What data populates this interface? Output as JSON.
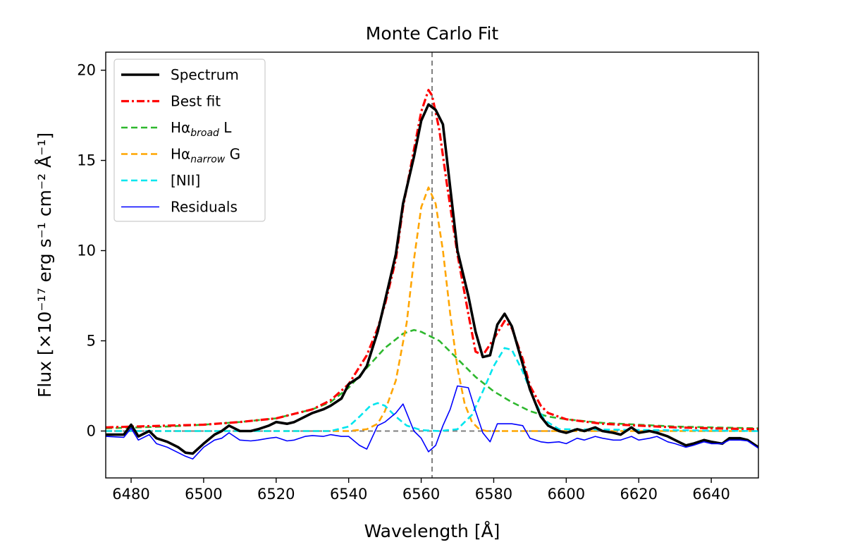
{
  "chart_data": {
    "type": "line",
    "title": "Monte Carlo Fit",
    "xlabel": "Wavelength [Å]",
    "ylabel": "Flux [×10⁻¹⁷ erg s⁻¹ cm⁻² Å⁻¹]",
    "xlim": [
      6473,
      6653
    ],
    "ylim": [
      -2.6,
      21.0
    ],
    "xticks": [
      6480,
      6500,
      6520,
      6540,
      6560,
      6580,
      6600,
      6620,
      6640
    ],
    "yticks": [
      0,
      5,
      10,
      15,
      20
    ],
    "grid": false,
    "legend_position": "top-left",
    "reference_lines": {
      "vertical_x": 6563,
      "horizontal_y": 0
    },
    "series": [
      {
        "name": "Spectrum",
        "legend_label": "Spectrum",
        "color": "#000000",
        "style": "solid",
        "x": [
          6473,
          6478,
          6480,
          6482,
          6485,
          6487,
          6490,
          6493,
          6495,
          6497,
          6500,
          6503,
          6505,
          6507,
          6510,
          6513,
          6515,
          6518,
          6520,
          6523,
          6525,
          6528,
          6530,
          6533,
          6535,
          6538,
          6540,
          6543,
          6545,
          6548,
          6550,
          6553,
          6555,
          6558,
          6560,
          6562,
          6564,
          6566,
          6568,
          6570,
          6573,
          6575,
          6577,
          6579,
          6581,
          6583,
          6585,
          6588,
          6590,
          6593,
          6595,
          6598,
          6600,
          6603,
          6605,
          6608,
          6610,
          6613,
          6615,
          6618,
          6620,
          6623,
          6625,
          6628,
          6630,
          6633,
          6635,
          6638,
          6640,
          6643,
          6645,
          6648,
          6650,
          6653
        ],
        "y": [
          -0.2,
          -0.2,
          0.35,
          -0.3,
          0.0,
          -0.4,
          -0.6,
          -0.9,
          -1.2,
          -1.25,
          -0.7,
          -0.2,
          0.0,
          0.3,
          0.0,
          0.0,
          0.1,
          0.3,
          0.5,
          0.4,
          0.5,
          0.8,
          1.0,
          1.2,
          1.4,
          1.8,
          2.6,
          3.0,
          3.6,
          5.5,
          7.2,
          9.8,
          12.6,
          15.2,
          17.2,
          18.1,
          17.8,
          17.0,
          13.5,
          10.0,
          7.5,
          5.5,
          4.1,
          4.2,
          5.9,
          6.5,
          5.8,
          3.7,
          2.3,
          0.8,
          0.3,
          0.0,
          -0.1,
          0.1,
          0.0,
          0.2,
          0.0,
          -0.1,
          -0.2,
          0.2,
          -0.1,
          0.0,
          -0.1,
          -0.3,
          -0.5,
          -0.8,
          -0.7,
          -0.5,
          -0.6,
          -0.7,
          -0.4,
          -0.4,
          -0.5,
          -0.9
        ]
      },
      {
        "name": "Best fit",
        "legend_label": "Best fit",
        "color": "#ff0000",
        "style": "dashdot",
        "x": [
          6473,
          6490,
          6500,
          6510,
          6520,
          6530,
          6535,
          6540,
          6545,
          6548,
          6550,
          6553,
          6555,
          6558,
          6560,
          6562,
          6563,
          6565,
          6567,
          6570,
          6573,
          6575,
          6577,
          6580,
          6583,
          6585,
          6588,
          6590,
          6593,
          6595,
          6600,
          6610,
          6620,
          6630,
          6640,
          6653
        ],
        "y": [
          0.2,
          0.3,
          0.35,
          0.5,
          0.7,
          1.2,
          1.7,
          2.6,
          4.2,
          5.7,
          7.0,
          9.5,
          12.4,
          15.6,
          17.7,
          18.9,
          18.6,
          16.7,
          13.8,
          9.8,
          6.5,
          4.4,
          4.2,
          5.1,
          6.1,
          5.7,
          4.0,
          2.5,
          1.4,
          1.0,
          0.65,
          0.4,
          0.3,
          0.2,
          0.15,
          0.1
        ]
      },
      {
        "name": "Hα broad L",
        "legend_label": "Hα",
        "legend_sub": "broad",
        "legend_suffix": " L",
        "color": "#2eb82e",
        "style": "dashed",
        "x": [
          6473,
          6490,
          6500,
          6510,
          6520,
          6530,
          6535,
          6540,
          6545,
          6550,
          6555,
          6558,
          6560,
          6565,
          6570,
          6575,
          6580,
          6585,
          6590,
          6595,
          6600,
          6610,
          6620,
          6630,
          6640,
          6653
        ],
        "y": [
          0.15,
          0.25,
          0.35,
          0.5,
          0.7,
          1.2,
          1.6,
          2.4,
          3.5,
          4.6,
          5.4,
          5.6,
          5.5,
          5.0,
          4.0,
          3.0,
          2.2,
          1.6,
          1.1,
          0.8,
          0.65,
          0.45,
          0.35,
          0.25,
          0.2,
          0.15
        ]
      },
      {
        "name": "Hα narrow G",
        "legend_label": "Hα",
        "legend_sub": "narrow",
        "legend_suffix": " G",
        "color": "#ffa500",
        "style": "dashed",
        "x": [
          6473,
          6540,
          6545,
          6548,
          6550,
          6553,
          6556,
          6558,
          6560,
          6562,
          6564,
          6566,
          6568,
          6570,
          6572,
          6574,
          6576,
          6578,
          6653
        ],
        "y": [
          0.0,
          0.0,
          0.1,
          0.4,
          1.1,
          2.8,
          6.0,
          9.5,
          12.4,
          13.5,
          12.6,
          10.0,
          6.5,
          3.5,
          1.5,
          0.5,
          0.1,
          0.0,
          0.0
        ]
      },
      {
        "name": "[NII]",
        "legend_label": "[NII]",
        "color": "#00e5ee",
        "style": "dashed",
        "x": [
          6473,
          6535,
          6540,
          6543,
          6546,
          6548,
          6550,
          6553,
          6556,
          6560,
          6565,
          6570,
          6574,
          6577,
          6580,
          6583,
          6585,
          6588,
          6591,
          6594,
          6598,
          6653
        ],
        "y": [
          0.0,
          0.0,
          0.25,
          0.8,
          1.4,
          1.55,
          1.4,
          0.8,
          0.3,
          0.05,
          0.0,
          0.1,
          0.9,
          2.2,
          3.6,
          4.6,
          4.5,
          3.3,
          1.8,
          0.6,
          0.1,
          0.0
        ]
      },
      {
        "name": "Residuals",
        "legend_label": "Residuals",
        "color": "#0000ff",
        "style": "solid",
        "x": [
          6473,
          6478,
          6480,
          6482,
          6485,
          6487,
          6490,
          6493,
          6495,
          6497,
          6500,
          6503,
          6505,
          6507,
          6510,
          6513,
          6515,
          6518,
          6520,
          6523,
          6525,
          6528,
          6530,
          6533,
          6535,
          6538,
          6540,
          6543,
          6545,
          6548,
          6550,
          6553,
          6555,
          6558,
          6560,
          6562,
          6564,
          6566,
          6568,
          6570,
          6573,
          6575,
          6577,
          6579,
          6581,
          6583,
          6585,
          6588,
          6590,
          6593,
          6595,
          6598,
          6600,
          6603,
          6605,
          6608,
          6610,
          6613,
          6615,
          6618,
          6620,
          6623,
          6625,
          6628,
          6630,
          6633,
          6635,
          6638,
          6640,
          6643,
          6645,
          6648,
          6650,
          6653
        ],
        "y": [
          -0.3,
          -0.35,
          0.15,
          -0.5,
          -0.2,
          -0.7,
          -0.9,
          -1.2,
          -1.4,
          -1.55,
          -0.9,
          -0.5,
          -0.4,
          -0.1,
          -0.5,
          -0.55,
          -0.5,
          -0.4,
          -0.35,
          -0.55,
          -0.5,
          -0.3,
          -0.25,
          -0.3,
          -0.2,
          -0.3,
          -0.3,
          -0.8,
          -1.0,
          0.3,
          0.5,
          1.0,
          1.5,
          0.0,
          -0.4,
          -1.15,
          -0.8,
          0.3,
          1.2,
          2.5,
          2.4,
          1.1,
          -0.1,
          -0.6,
          0.4,
          0.4,
          0.4,
          0.3,
          -0.4,
          -0.6,
          -0.65,
          -0.6,
          -0.7,
          -0.4,
          -0.5,
          -0.3,
          -0.4,
          -0.5,
          -0.5,
          -0.3,
          -0.5,
          -0.4,
          -0.3,
          -0.6,
          -0.7,
          -0.9,
          -0.8,
          -0.6,
          -0.7,
          -0.7,
          -0.5,
          -0.5,
          -0.55,
          -0.95
        ]
      }
    ]
  }
}
